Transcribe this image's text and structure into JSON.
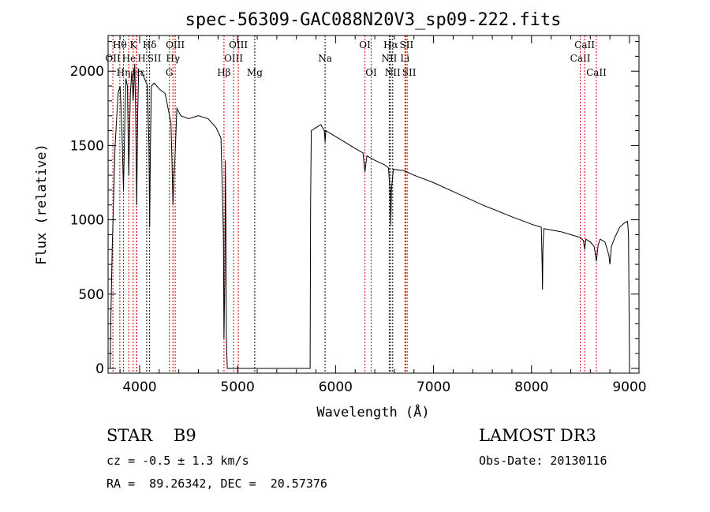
{
  "chart_data": {
    "type": "line",
    "title": "spec-56309-GAC088N20V3_sp09-222.fits",
    "xlabel": "Wavelength (Å)",
    "ylabel": "Flux (relative)",
    "xlim": [
      3678,
      9097
    ],
    "ylim": [
      -32,
      2240
    ],
    "xticks": [
      4000,
      5000,
      6000,
      7000,
      8000,
      9000
    ],
    "yticks": [
      0,
      500,
      1000,
      1500,
      2000
    ],
    "grid": false,
    "series": [
      {
        "name": "flux",
        "x": [
          3700,
          3705,
          3720,
          3750,
          3780,
          3800,
          3820,
          3835,
          3850,
          3860,
          3875,
          3889,
          3905,
          3920,
          3934,
          3950,
          3960,
          3970,
          3980,
          3990,
          4020,
          4050,
          4080,
          4095,
          4102,
          4110,
          4120,
          4150,
          4200,
          4260,
          4300,
          4320,
          4330,
          4340,
          4350,
          4360,
          4380,
          4420,
          4500,
          4600,
          4700,
          4780,
          4830,
          4845,
          4855,
          4861,
          4870,
          4875,
          4880,
          4886,
          4895,
          5740,
          5745,
          5752,
          5800,
          5850,
          5885,
          5893,
          5900,
          6000,
          6100,
          6200,
          6280,
          6300,
          6310,
          6320,
          6400,
          6500,
          6540,
          6556,
          6563,
          6570,
          6590,
          6700,
          6800,
          7000,
          7200,
          7500,
          7800,
          8000,
          8100,
          8108,
          8112,
          8116,
          8125,
          8300,
          8400,
          8500,
          8530,
          8542,
          8555,
          8600,
          8640,
          8662,
          8680,
          8700,
          8750,
          8790,
          8800,
          8815,
          8850,
          8900,
          8950,
          8980,
          8990,
          9000
        ],
        "y": [
          0,
          300,
          800,
          1500,
          1850,
          1900,
          1600,
          1200,
          1700,
          1950,
          1900,
          1300,
          1850,
          2000,
          1800,
          2050,
          1700,
          1100,
          1700,
          2000,
          2000,
          1950,
          1900,
          1500,
          950,
          1500,
          1900,
          1920,
          1880,
          1850,
          1720,
          1650,
          1400,
          1100,
          1300,
          1400,
          1750,
          1700,
          1680,
          1700,
          1680,
          1620,
          1550,
          1200,
          900,
          200,
          600,
          1400,
          1000,
          200,
          0,
          0,
          1100,
          1600,
          1620,
          1640,
          1600,
          1520,
          1600,
          1560,
          1520,
          1480,
          1450,
          1320,
          1380,
          1430,
          1400,
          1370,
          1350,
          1200,
          960,
          1200,
          1340,
          1330,
          1300,
          1250,
          1190,
          1100,
          1020,
          970,
          950,
          700,
          530,
          800,
          940,
          920,
          900,
          880,
          860,
          800,
          870,
          850,
          820,
          720,
          830,
          870,
          850,
          760,
          700,
          820,
          880,
          950,
          980,
          990,
          900,
          0
        ]
      }
    ],
    "lines": [
      {
        "label": "OII",
        "wave": 3727,
        "color": "#cc0000",
        "row": 2
      },
      {
        "label": "Hθ",
        "wave": 3798,
        "color": "#cc0000",
        "row": 1
      },
      {
        "label": "Hη",
        "wave": 3835,
        "color": "#cc0000",
        "row": 3
      },
      {
        "label": "He",
        "wave": 3889,
        "color": "#cc0000",
        "row": 2
      },
      {
        "label": "K",
        "wave": 3934,
        "color": "#cc0000",
        "row": 1
      },
      {
        "label": "H",
        "wave": 3968,
        "color": "#cc0000",
        "row": 2
      },
      {
        "label": "Hε",
        "wave": 3970,
        "color": "#cc0000",
        "row": 3
      },
      {
        "label": "SII",
        "wave": 4072,
        "color": "#000000",
        "row": 2
      },
      {
        "label": "Hδ",
        "wave": 4102,
        "color": "#000000",
        "row": 1
      },
      {
        "label": "G",
        "wave": 4304,
        "color": "#cc0000",
        "row": 3
      },
      {
        "label": "Hγ",
        "wave": 4340,
        "color": "#cc0000",
        "row": 2
      },
      {
        "label": "OIII",
        "wave": 4363,
        "color": "#cc0000",
        "row": 1
      },
      {
        "label": "Hβ",
        "wave": 4861,
        "color": "#cc0000",
        "row": 3
      },
      {
        "label": "OIII",
        "wave": 4959,
        "color": "#cc0000",
        "row": 2
      },
      {
        "label": "OIII",
        "wave": 5007,
        "color": "#cc0000",
        "row": 1
      },
      {
        "label": "Mg",
        "wave": 5175,
        "color": "#000000",
        "row": 3
      },
      {
        "label": "Na",
        "wave": 5893,
        "color": "#000000",
        "row": 2
      },
      {
        "label": "OI",
        "wave": 6300,
        "color": "#cc0000",
        "row": 1
      },
      {
        "label": "OI",
        "wave": 6363,
        "color": "#cc0000",
        "row": 3
      },
      {
        "label": "NII",
        "wave": 6548,
        "color": "#000000",
        "row": 2
      },
      {
        "label": "Hα",
        "wave": 6563,
        "color": "#000000",
        "row": 1
      },
      {
        "label": "NII",
        "wave": 6583,
        "color": "#000000",
        "row": 3
      },
      {
        "label": "Li",
        "wave": 6708,
        "color": "#cc0000",
        "row": 2
      },
      {
        "label": "SII",
        "wave": 6716,
        "color": "#cc0000",
        "row": 1
      },
      {
        "label": "SII",
        "wave": 6731,
        "color": "#cc0000",
        "row": 3
      },
      {
        "label": "CaII",
        "wave": 8498,
        "color": "#cc0000",
        "row": 2
      },
      {
        "label": "CaII",
        "wave": 8542,
        "color": "#cc0000",
        "row": 1
      },
      {
        "label": "CaII",
        "wave": 8662,
        "color": "#cc0000",
        "row": 3
      }
    ]
  },
  "info": {
    "class": "STAR    B9",
    "survey": "LAMOST DR3",
    "cz": "cz = -0.5 ± 1.3 km/s",
    "obs_date": "Obs-Date: 20130116",
    "coords": "RA =  89.26342, DEC =  20.57376"
  }
}
